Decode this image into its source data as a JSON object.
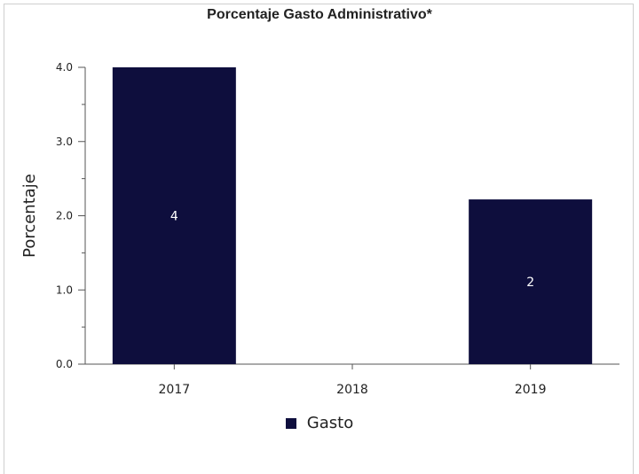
{
  "chart_data": {
    "type": "bar",
    "title": "Porcentaje Gasto Administrativo*",
    "xlabel": "",
    "ylabel": "Porcentaje",
    "categories": [
      "2017",
      "2018",
      "2019"
    ],
    "series": [
      {
        "name": "Gasto",
        "values": [
          4.0,
          0,
          2.22
        ],
        "data_labels": [
          "4",
          "",
          "2"
        ],
        "color": "#0e0e3d"
      }
    ],
    "ylim": [
      0,
      4
    ],
    "yticks": [
      "0.0",
      "1.0",
      "2.0",
      "3.0",
      "4.0"
    ],
    "grid": false,
    "legend": "bottom-center"
  }
}
